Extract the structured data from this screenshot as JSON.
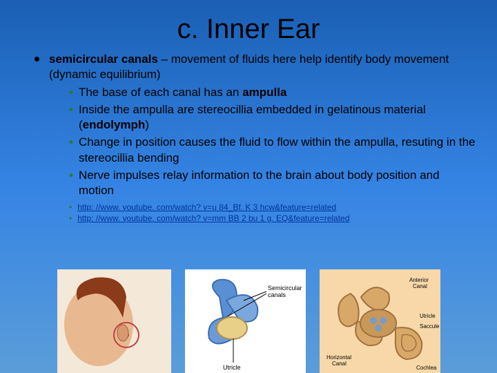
{
  "title": "c. Inner Ear",
  "main_bullet_html": "<span class='bold'>semicircular canals</span> – movement of fluids here help identify body movement (dynamic equilibrium)",
  "sub_items": [
    "The base of each canal has an <span class='bold'>ampulla</span>",
    "Inside the ampulla are stereocillia embedded in gelatinous material (<span class='bold'>endolymph</span>)",
    "Change in position causes the fluid to flow within the ampulla, resuting in the stereocillia bending",
    "Nerve impulses relay information to the brain about body position and motion"
  ],
  "links": [
    "http: //www. youtube. com/watch? v=u 84_Bf. K 3 hcw&feature=related",
    "http: //www. youtube. com/watch? v=mm BB 2 bu 1 g. EQ&feature=related"
  ],
  "colors": {
    "bg_top": "#1a5fb4",
    "bg_bottom": "#5b9dd9",
    "bullet_green": "#2a7a2a",
    "link_color": "#003399"
  },
  "images": {
    "img1_label": "head-with-ear",
    "img2_label": "semicircular-canals-diagram",
    "img3_label": "inner-ear-anatomy"
  }
}
